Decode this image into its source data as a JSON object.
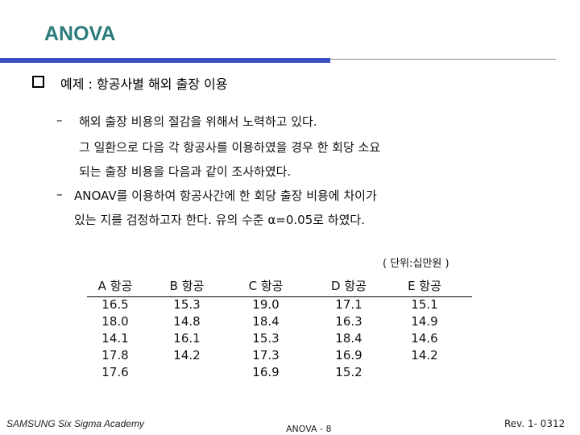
{
  "header": {
    "title": "ANOVA"
  },
  "heading": "예제 : 항공사별 해외 출장 이용",
  "bullets": [
    [
      "해외 출장 비용의 절감을 위해서 노력하고 있다.",
      "그 일환으로 다음 각 항공사를 이용하였을 경우 한 회당 소요",
      "되는 출장 비용을 다음과 같이 조사하였다."
    ],
    [
      "ANOAV를 이용하여 항공사간에 한 회당 출장 비용에 차이가",
      "있는 지를 검정하고자 한다. 유의 수준 α=0.05로 하였다."
    ]
  ],
  "unit": "( 단위:십만원 )",
  "table": {
    "columns": [
      {
        "header": "A 항공",
        "values": [
          "16.5",
          "18.0",
          "14.1",
          "17.8",
          "17.6"
        ]
      },
      {
        "header": "B 항공",
        "values": [
          "15.3",
          "14.8",
          "16.1",
          "14.2"
        ]
      },
      {
        "header": "C 항공",
        "values": [
          "19.0",
          "18.4",
          "15.3",
          "17.3",
          "16.9"
        ]
      },
      {
        "header": "D 항공",
        "values": [
          "17.1",
          "16.3",
          "18.4",
          "16.9",
          "15.2"
        ]
      },
      {
        "header": "E 항공",
        "values": [
          "15.1",
          "14.9",
          "14.6",
          "14.2"
        ]
      }
    ]
  },
  "footer": {
    "left": "SAMSUNG Six Sigma Academy",
    "center": "ANOVA - 8",
    "right": "Rev. 1- 0312"
  }
}
